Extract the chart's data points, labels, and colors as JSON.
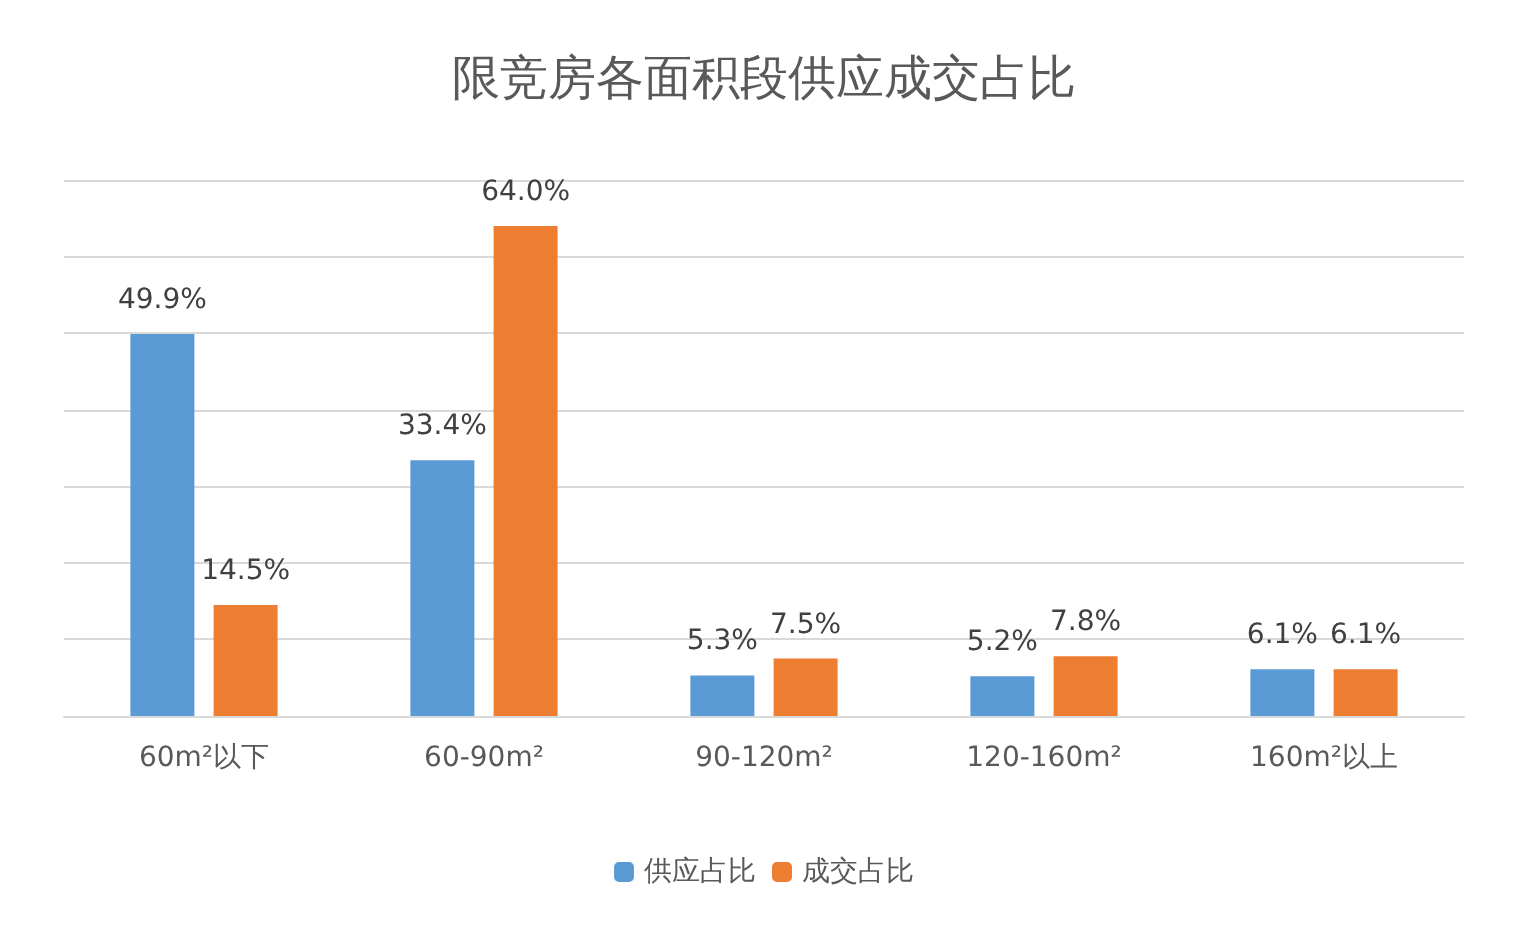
{
  "chart_data": {
    "type": "bar",
    "title": "限竞房各面积段供应成交占比",
    "categories": [
      "60m²以下",
      "60-90m²",
      "90-120m²",
      "120-160m²",
      "160m²以上"
    ],
    "series": [
      {
        "name": "供应占比",
        "color": "#5b9bd5",
        "values": [
          49.9,
          33.4,
          5.3,
          5.2,
          6.1
        ],
        "value_labels": [
          "49.9%",
          "33.4%",
          "5.3%",
          "5.2%",
          "6.1%"
        ]
      },
      {
        "name": "成交占比",
        "color": "#ed7d31",
        "values": [
          14.5,
          64.0,
          7.5,
          7.8,
          6.1
        ],
        "value_labels": [
          "14.5%",
          "64.0%",
          "7.5%",
          "7.8%",
          "6.1%"
        ]
      }
    ],
    "ylim": [
      0,
      70
    ],
    "yticks": [
      {
        "value": 0,
        "label": null
      },
      {
        "value": 10,
        "label": null
      },
      {
        "value": 20,
        "label": null
      },
      {
        "value": 30,
        "label": null
      },
      {
        "value": 40,
        "label": null
      },
      {
        "value": 50,
        "label": null
      },
      {
        "value": 60,
        "label": null
      },
      {
        "value": 70,
        "label": null
      }
    ],
    "tick_labels": "x",
    "grid": "y",
    "legend": "bottom"
  }
}
